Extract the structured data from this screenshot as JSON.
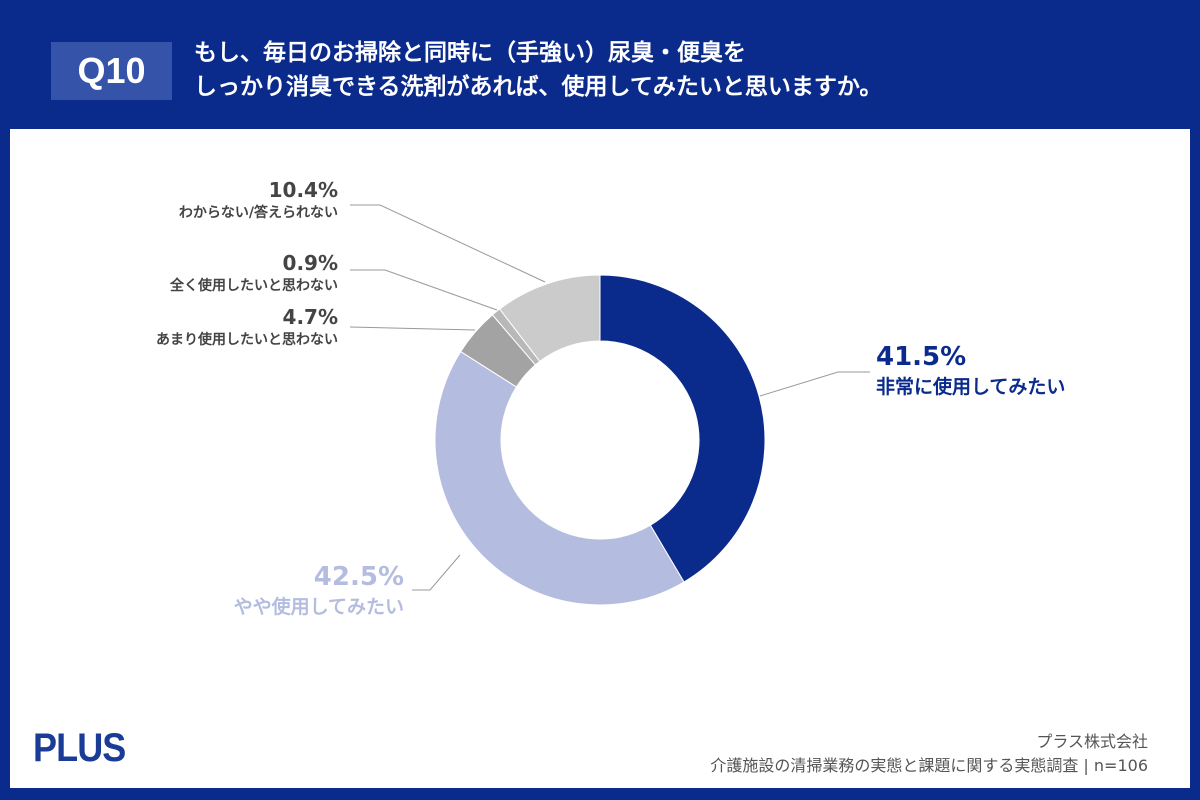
{
  "header": {
    "question_no": "Q10",
    "line1": "もし、毎日のお掃除と同時に（手強い）尿臭・便臭を",
    "line2": "しっかり消臭できる洗剤があれば、使用してみたいと思いますか。"
  },
  "chart_data": {
    "type": "pie",
    "donut": true,
    "slices": [
      {
        "label": "非常に使用してみたい",
        "value": 41.5,
        "display": "41.5%",
        "color": "#0b2b8c"
      },
      {
        "label": "やや使用してみたい",
        "value": 42.5,
        "display": "42.5%",
        "color": "#b4bde0"
      },
      {
        "label": "あまり使用したいと思わない",
        "value": 4.7,
        "display": "4.7%",
        "color": "#a3a3a3"
      },
      {
        "label": "全く使用したいと思わない",
        "value": 0.9,
        "display": "0.9%",
        "color": "#b8b8b8"
      },
      {
        "label": "わからない/答えられない",
        "value": 10.4,
        "display": "10.4%",
        "color": "#cbcbcb"
      }
    ]
  },
  "footer": {
    "logo": "PLUS",
    "company": "プラス株式会社",
    "survey": "介護施設の清掃業務の実態と課題に関する実態調査 | n=106"
  }
}
